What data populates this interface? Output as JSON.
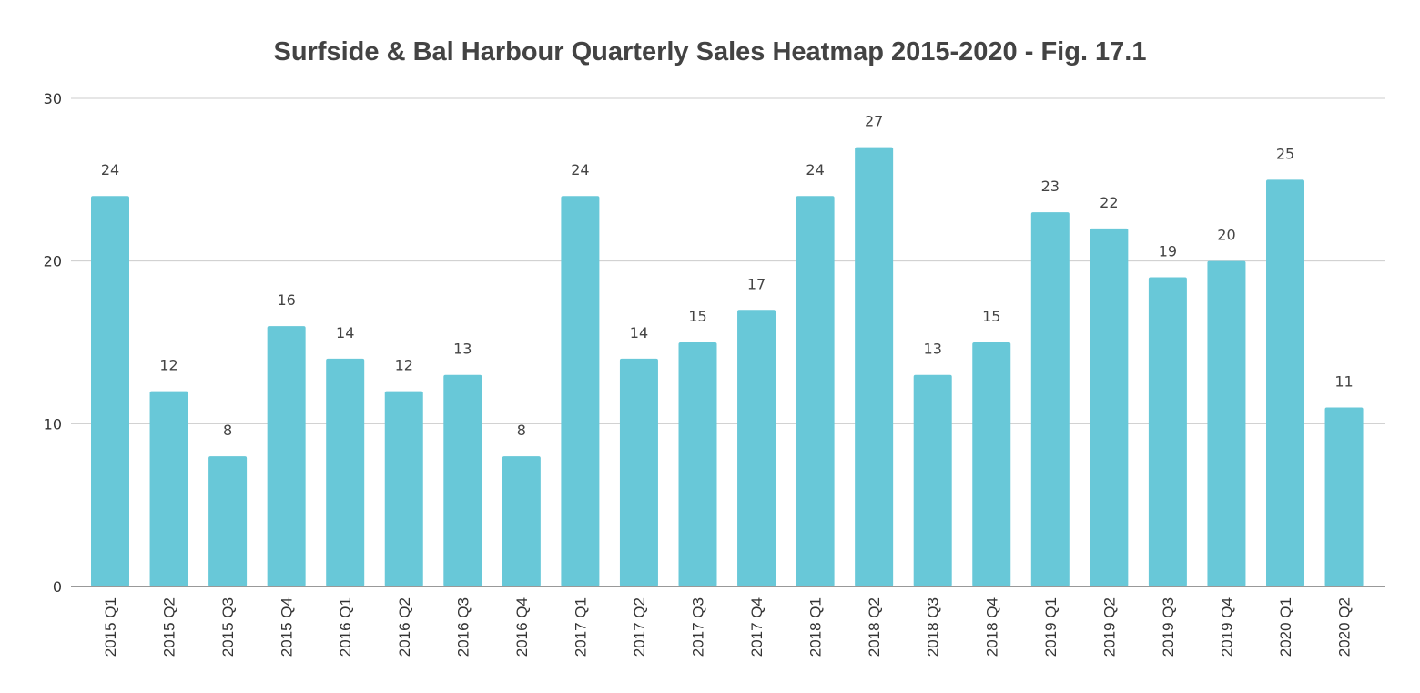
{
  "chart_data": {
    "type": "bar",
    "title": "Surfside & Bal Harbour Quarterly Sales Heatmap 2015-2020 - Fig. 17.1",
    "xlabel": "",
    "ylabel": "",
    "ylim": [
      0,
      30
    ],
    "yticks": [
      0,
      10,
      20,
      30
    ],
    "grid": true,
    "legend": "none",
    "bar_color": "#68c8d8",
    "categories": [
      "2015 Q1",
      "2015 Q2",
      "2015 Q3",
      "2015 Q4",
      "2016 Q1",
      "2016 Q2",
      "2016 Q3",
      "2016 Q4",
      "2017 Q1",
      "2017 Q2",
      "2017 Q3",
      "2017 Q4",
      "2018 Q1",
      "2018 Q2",
      "2018 Q3",
      "2018 Q4",
      "2019 Q1",
      "2019 Q2",
      "2019 Q3",
      "2019 Q4",
      "2020 Q1",
      "2020 Q2"
    ],
    "values": [
      24,
      12,
      8,
      16,
      14,
      12,
      13,
      8,
      24,
      14,
      15,
      17,
      24,
      27,
      13,
      15,
      23,
      22,
      19,
      20,
      25,
      11
    ]
  }
}
